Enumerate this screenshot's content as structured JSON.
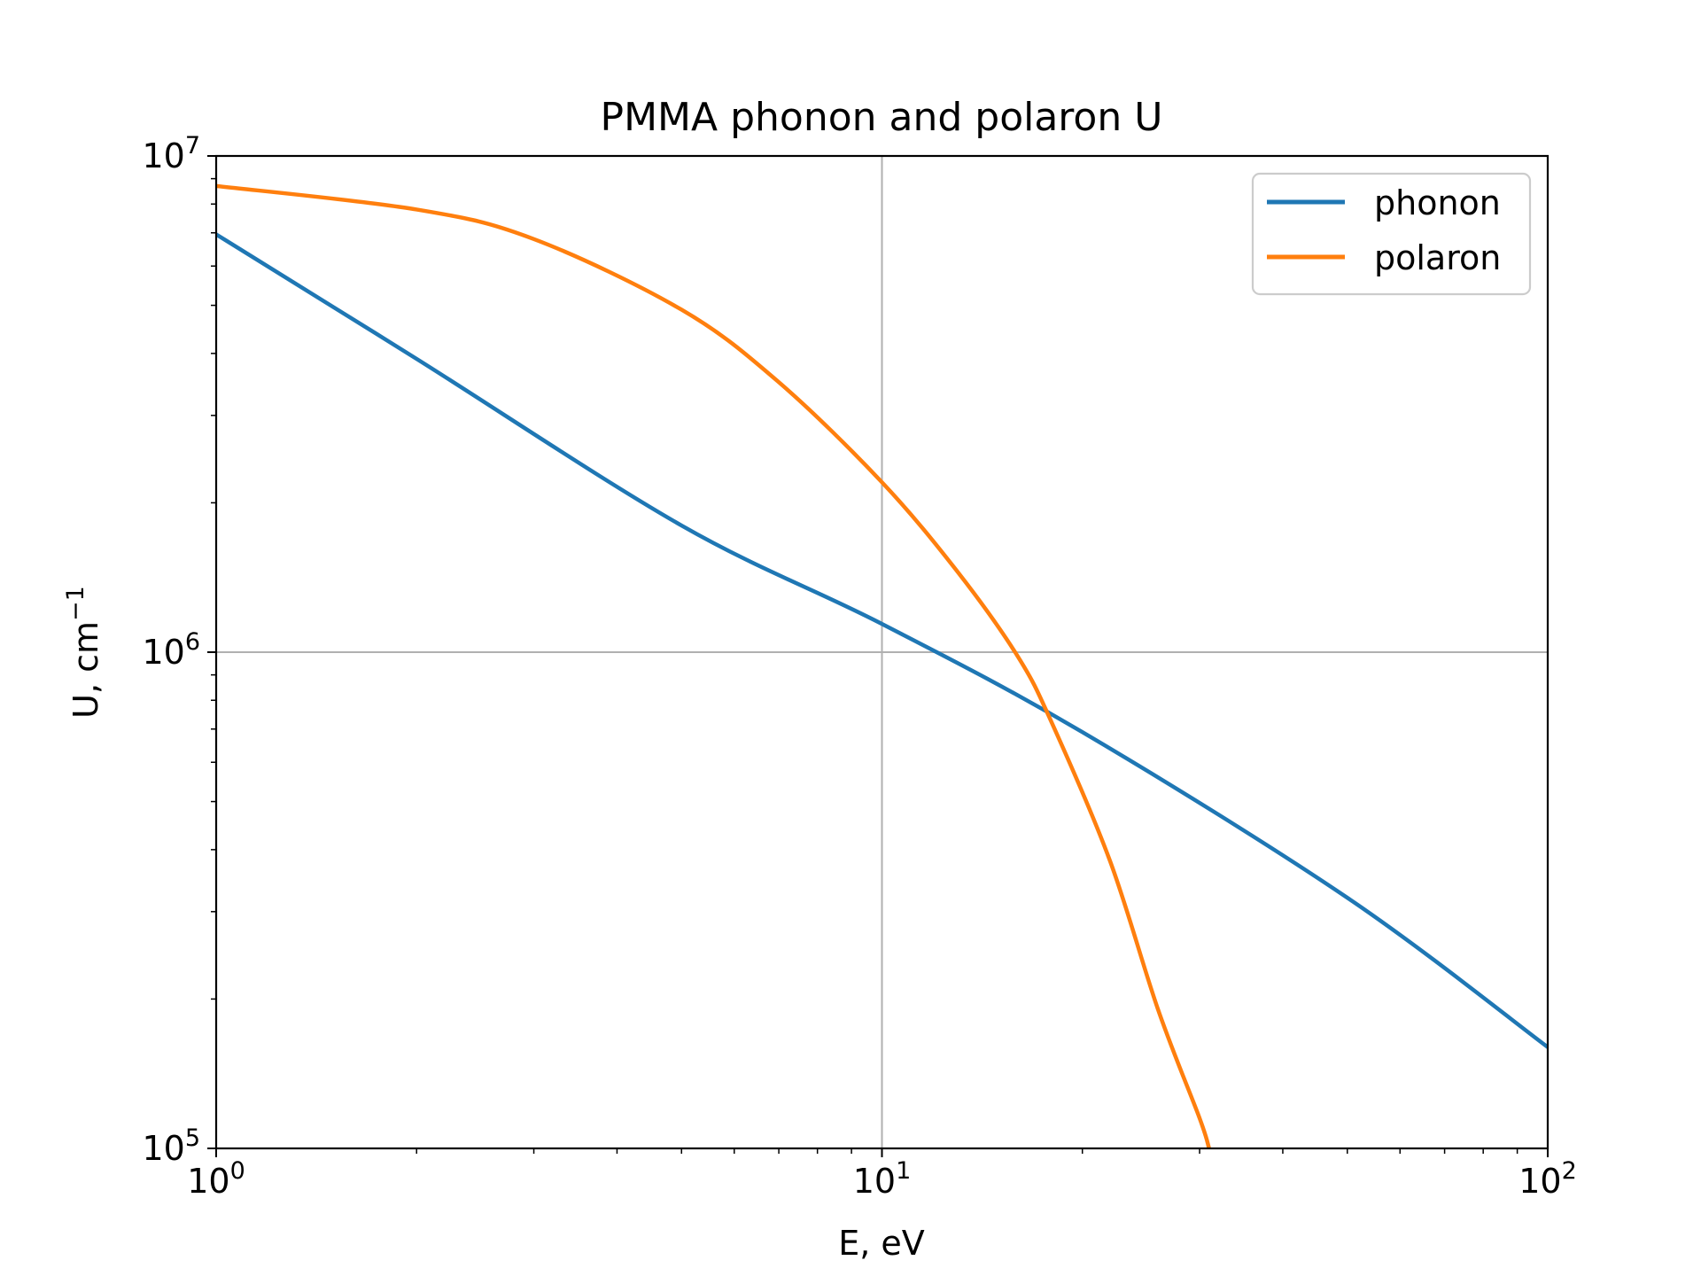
{
  "chart_data": {
    "type": "line",
    "title": "PMMA phonon and polaron U",
    "xlabel": "E, eV",
    "ylabel": {
      "base": "U, cm",
      "sup": "−1"
    },
    "x_scale": "log",
    "y_scale": "log",
    "xlim": [
      1,
      100
    ],
    "ylim": [
      100000,
      10000000
    ],
    "grid": "major",
    "legend_position": "top-right",
    "x_ticks": [
      {
        "value": 1,
        "base": "10",
        "exp": "0"
      },
      {
        "value": 10,
        "base": "10",
        "exp": "1"
      },
      {
        "value": 100,
        "base": "10",
        "exp": "2"
      }
    ],
    "y_ticks": [
      {
        "value": 100000,
        "base": "10",
        "exp": "5"
      },
      {
        "value": 1000000,
        "base": "10",
        "exp": "6"
      },
      {
        "value": 10000000,
        "base": "10",
        "exp": "7"
      }
    ],
    "series": [
      {
        "name": "phonon",
        "color": "#1f77b4",
        "x": [
          1,
          2,
          5,
          10,
          20,
          50,
          100
        ],
        "y": [
          6950000,
          3900000,
          1800000,
          1140000,
          690000,
          320000,
          160000
        ]
      },
      {
        "name": "polaron",
        "color": "#ff7f0e",
        "x": [
          1,
          2,
          3,
          5,
          7,
          10,
          13,
          16,
          18,
          22,
          26,
          30,
          31
        ],
        "y": [
          8700000,
          7800000,
          6800000,
          4900000,
          3500000,
          2200000,
          1450000,
          980000,
          720000,
          380000,
          190000,
          115000,
          100000
        ]
      }
    ]
  }
}
